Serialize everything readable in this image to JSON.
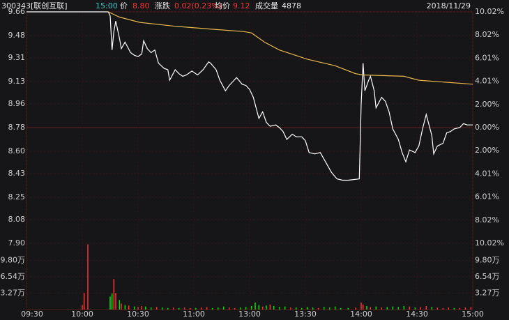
{
  "chart_data": {
    "type": "line",
    "header": {
      "code": "300343[联创互联]",
      "time": "15:00",
      "price_label": "价",
      "price": "8.80",
      "change_label": "涨跌",
      "change": "0.02(0.23%)",
      "avg_label": "均价",
      "avg": "9.12",
      "volume_label": "成交量",
      "volume": "4878",
      "date": "2018/11/29"
    },
    "xlim": [
      0,
      240
    ],
    "xticks": [
      {
        "value": 0,
        "label": "09:30"
      },
      {
        "value": 30,
        "label": "10:00"
      },
      {
        "value": 60,
        "label": "10:30"
      },
      {
        "value": 90,
        "label": "11:00"
      },
      {
        "value": 120,
        "label": "13:00"
      },
      {
        "value": 150,
        "label": "13:30"
      },
      {
        "value": 180,
        "label": "14:00"
      },
      {
        "value": 210,
        "label": "14:30"
      },
      {
        "value": 240,
        "label": "15:00"
      }
    ],
    "ylim": [
      7.9,
      9.66
    ],
    "yticks": [
      9.66,
      9.48,
      9.31,
      9.13,
      8.96,
      8.78,
      {
        "value": 8.6,
        "label": "8.60"
      },
      8.43,
      8.25,
      8.08,
      {
        "value": 7.9,
        "label": "7.90"
      }
    ],
    "y2lim": [
      -10.02,
      10.02
    ],
    "y2ticks": [
      {
        "value": 10.02,
        "label": "10.02%"
      },
      {
        "value": 8.02,
        "label": "8.02%"
      },
      {
        "value": 6.01,
        "label": "6.01%"
      },
      {
        "value": 4.01,
        "label": "4.01%"
      },
      {
        "value": 2.0,
        "label": "2.00%"
      },
      {
        "value": 0,
        "label": "0.00%"
      },
      {
        "value": -2.0,
        "label": "2.00%"
      },
      {
        "value": -4.01,
        "label": "4.01%"
      },
      {
        "value": -6.01,
        "label": "6.01%"
      },
      {
        "value": -8.02,
        "label": "8.02%"
      },
      {
        "value": -10.02,
        "label": "10.02%"
      }
    ],
    "series": [
      {
        "color": "#ffffff",
        "x": [
          0,
          44,
          45,
          46,
          47,
          48,
          50,
          51,
          53,
          56,
          58,
          60,
          62,
          63,
          65,
          67,
          69,
          71,
          74,
          76,
          77,
          80,
          82,
          84,
          86,
          89,
          92,
          95,
          98,
          99,
          102,
          104,
          107,
          109,
          111,
          113,
          116,
          118,
          120,
          122,
          125,
          127,
          129,
          131,
          134,
          136,
          138,
          140,
          143,
          145,
          148,
          150,
          152,
          155,
          158,
          160,
          162,
          164,
          167,
          170,
          173,
          179,
          180,
          181,
          182,
          184,
          185,
          187,
          188,
          191,
          193,
          195,
          197,
          200,
          202,
          204,
          206,
          209,
          211,
          213,
          215,
          218,
          219,
          221,
          224,
          226,
          228,
          230,
          233,
          235,
          237,
          240
        ],
        "values": [
          9.66,
          9.66,
          9.63,
          9.37,
          9.51,
          9.59,
          9.46,
          9.38,
          9.43,
          9.35,
          9.33,
          9.32,
          9.34,
          9.44,
          9.38,
          9.35,
          9.37,
          9.27,
          9.23,
          9.22,
          9.14,
          9.22,
          9.19,
          9.17,
          9.18,
          9.21,
          9.18,
          9.22,
          9.28,
          9.27,
          9.22,
          9.14,
          9.06,
          9.1,
          9.13,
          9.16,
          9.11,
          9.1,
          9.07,
          9.01,
          8.85,
          8.9,
          8.82,
          8.79,
          8.8,
          8.78,
          8.75,
          8.69,
          8.73,
          8.71,
          8.71,
          8.68,
          8.59,
          8.58,
          8.59,
          8.54,
          8.49,
          8.44,
          8.39,
          8.38,
          8.38,
          8.39,
          8.96,
          9.27,
          9.06,
          9.14,
          9.17,
          9.06,
          8.93,
          9.01,
          8.98,
          8.9,
          8.77,
          8.69,
          8.59,
          8.52,
          8.61,
          8.59,
          8.64,
          8.77,
          8.88,
          8.72,
          8.58,
          8.64,
          8.66,
          8.74,
          8.75,
          8.77,
          8.78,
          8.81,
          8.8,
          8.8
        ]
      },
      {
        "color": "#e8b64a",
        "x": [
          44,
          50,
          61,
          80,
          98,
          117,
          121,
          128,
          136,
          151,
          166,
          177,
          181,
          203,
          211,
          240
        ],
        "values": [
          9.66,
          9.62,
          9.58,
          9.55,
          9.53,
          9.51,
          9.5,
          9.43,
          9.37,
          9.3,
          9.25,
          9.19,
          9.18,
          9.17,
          9.14,
          9.11
        ]
      }
    ],
    "volume": {
      "vlim": [
        0,
        130700
      ],
      "vticks": [
        {
          "value": 98000,
          "label": "9.80万"
        },
        {
          "value": 65400,
          "label": "6.54万"
        },
        {
          "value": 32700,
          "label": "3.27万"
        }
      ],
      "up_color": "#ff3232",
      "down_color": "#00e600",
      "x": [
        30,
        31,
        33,
        45,
        46,
        47,
        48,
        50,
        51,
        53,
        55,
        58,
        60,
        62,
        64,
        67,
        70,
        73,
        76,
        79,
        82,
        85,
        88,
        91,
        94,
        97,
        100,
        103,
        106,
        109,
        112,
        115,
        118,
        121,
        123,
        125,
        127,
        129,
        131,
        133,
        136,
        139,
        142,
        145,
        148,
        151,
        154,
        157,
        160,
        163,
        166,
        169,
        173,
        177,
        180,
        181,
        183,
        185,
        188,
        191,
        194,
        197,
        200,
        203,
        206,
        209,
        212,
        215,
        218,
        221,
        224,
        227,
        230,
        233,
        236,
        239
      ],
      "values": [
        9000,
        33000,
        130000,
        26000,
        32000,
        61000,
        33000,
        19000,
        12000,
        9000,
        8000,
        6000,
        5000,
        7000,
        6000,
        4000,
        5000,
        4000,
        3000,
        4000,
        3000,
        4000,
        3000,
        3000,
        4000,
        5000,
        3000,
        4000,
        6000,
        4000,
        3000,
        4000,
        5000,
        7000,
        14000,
        9000,
        6000,
        8000,
        10000,
        7000,
        5000,
        6000,
        4000,
        4000,
        3000,
        5000,
        4000,
        3000,
        5000,
        4000,
        6000,
        3000,
        3000,
        4000,
        14000,
        10000,
        7000,
        5000,
        6000,
        4000,
        5000,
        6000,
        5000,
        7000,
        6000,
        4000,
        5000,
        7000,
        5000,
        4000,
        3000,
        4000,
        3000,
        3000,
        4000,
        5000
      ],
      "up": [
        true,
        true,
        true,
        false,
        false,
        true,
        true,
        false,
        true,
        false,
        true,
        false,
        true,
        true,
        false,
        false,
        true,
        false,
        false,
        true,
        false,
        true,
        true,
        false,
        true,
        true,
        false,
        false,
        false,
        true,
        true,
        false,
        false,
        false,
        false,
        false,
        true,
        false,
        true,
        false,
        false,
        false,
        true,
        false,
        false,
        false,
        false,
        true,
        false,
        false,
        false,
        false,
        false,
        true,
        true,
        true,
        false,
        true,
        false,
        true,
        false,
        false,
        false,
        false,
        true,
        false,
        true,
        true,
        false,
        true,
        true,
        true,
        false,
        true,
        true,
        true
      ]
    }
  }
}
